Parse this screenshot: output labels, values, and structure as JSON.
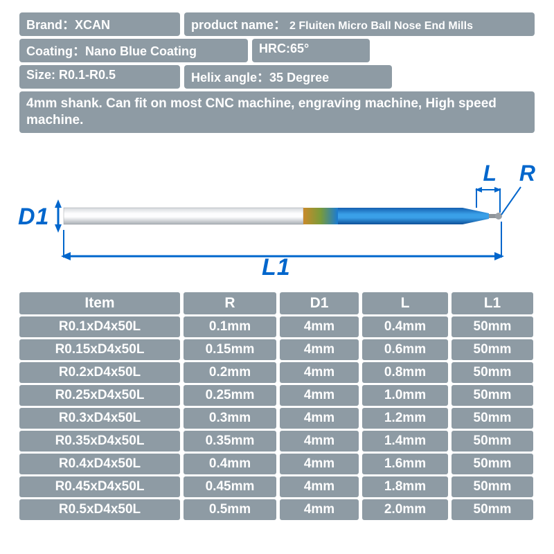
{
  "info": {
    "brand_label": "Brand：",
    "brand_value": "XCAN",
    "product_label": "product name：",
    "product_value": "2 Fluiten Micro Ball Nose End Mills",
    "coating_label": "Coating：",
    "coating_value": "Nano Blue Coating",
    "hrc_label": "HRC:",
    "hrc_value": "65°",
    "size_label": "Size: ",
    "size_value": "R0.1-R0.5",
    "helix_label": "Helix angle：",
    "helix_value": "35 Degree",
    "description": "4mm shank. Can fit on most CNC machine, engraving machine, High speed machine."
  },
  "diagram": {
    "D1": "D1",
    "L1": "L1",
    "L": "L",
    "R": "R",
    "colors": {
      "label": "#0066cc",
      "shank_light": "#f5f5f7",
      "shank_dark": "#b8bcc0",
      "transition1": "#c98a2a",
      "transition2": "#6a8f3a",
      "blue1": "#1b7bd1",
      "blue2": "#2e9be6",
      "tip": "#9aa0a6",
      "line": "#0066cc"
    }
  },
  "table": {
    "columns": [
      "Item",
      "R",
      "D1",
      "L",
      "L1"
    ],
    "rows": [
      [
        "R0.1xD4x50L",
        "0.1mm",
        "4mm",
        "0.4mm",
        "50mm"
      ],
      [
        "R0.15xD4x50L",
        "0.15mm",
        "4mm",
        "0.6mm",
        "50mm"
      ],
      [
        "R0.2xD4x50L",
        "0.2mm",
        "4mm",
        "0.8mm",
        "50mm"
      ],
      [
        "R0.25xD4x50L",
        "0.25mm",
        "4mm",
        "1.0mm",
        "50mm"
      ],
      [
        "R0.3xD4x50L",
        "0.3mm",
        "4mm",
        "1.2mm",
        "50mm"
      ],
      [
        "R0.35xD4x50L",
        "0.35mm",
        "4mm",
        "1.4mm",
        "50mm"
      ],
      [
        "R0.4xD4x50L",
        "0.4mm",
        "4mm",
        "1.6mm",
        "50mm"
      ],
      [
        "R0.45xD4x50L",
        "0.45mm",
        "4mm",
        "1.8mm",
        "50mm"
      ],
      [
        "R0.5xD4x50L",
        "0.5mm",
        "4mm",
        "2.0mm",
        "50mm"
      ]
    ]
  },
  "style": {
    "cell_bg": "#8e9ba4",
    "cell_fg": "#ffffff",
    "col_widths": {
      "item": 232,
      "r": 134,
      "d1": 114,
      "l": 124,
      "l1": 118
    }
  }
}
